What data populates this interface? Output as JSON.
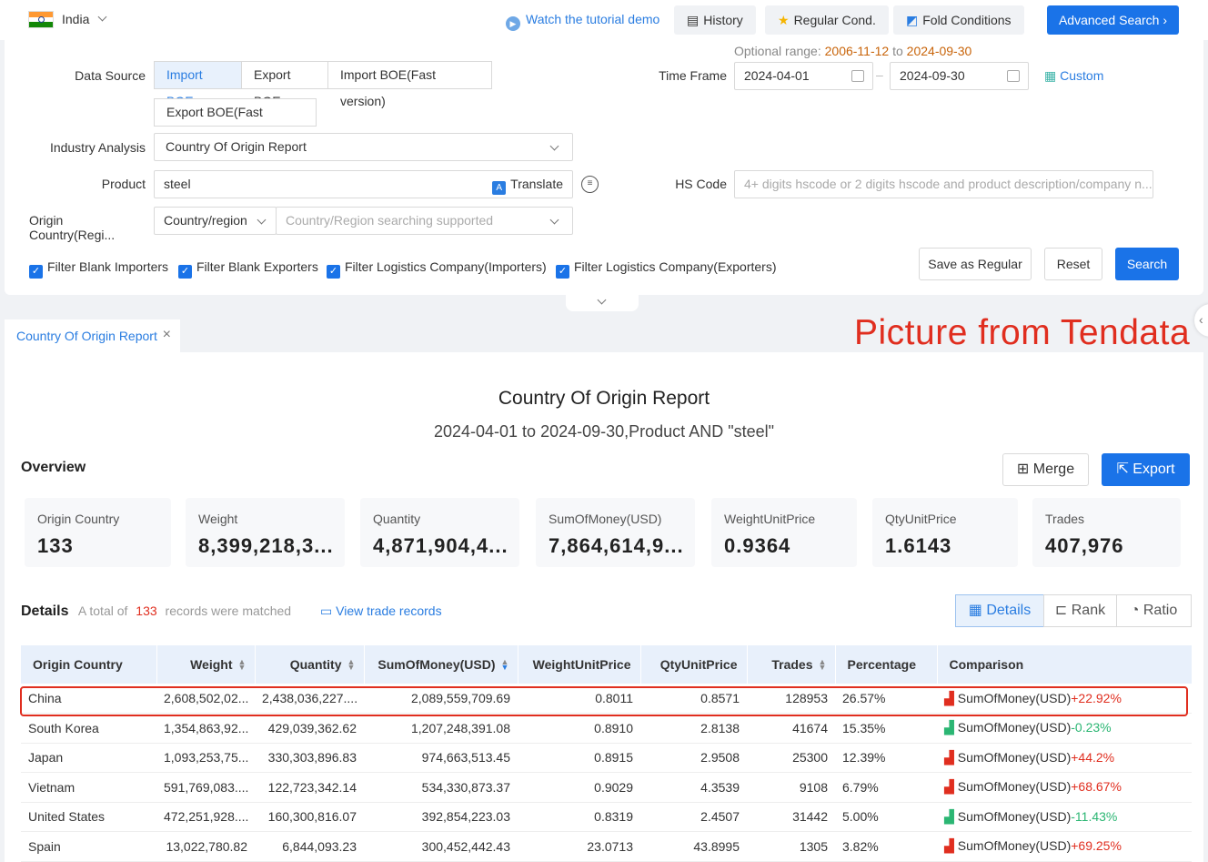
{
  "topbar": {
    "country": "India",
    "tutorial": "Watch the tutorial demo",
    "history": "History",
    "regular_cond": "Regular Cond.",
    "fold_conditions": "Fold Conditions",
    "advanced_search": "Advanced Search"
  },
  "form": {
    "data_source_label": "Data Source",
    "sources": [
      "Import BOE",
      "Export BOE",
      "Import BOE(Fast version)",
      "Export BOE(Fast version)"
    ],
    "optional_range_label": "Optional range",
    "optional_range_from": "2006-11-12",
    "optional_range_to_word": "to",
    "optional_range_to": "2024-09-30",
    "time_frame_label": "Time Frame",
    "date_from": "2024-04-01",
    "date_to": "2024-09-30",
    "custom": "Custom",
    "industry_label": "Industry Analysis",
    "industry_value": "Country Of Origin Report",
    "product_label": "Product",
    "product_value": "steel",
    "translate": "Translate",
    "hs_label": "HS Code",
    "hs_placeholder": "4+ digits hscode or 2 digits hscode and product description/company n...",
    "origin_label": "Origin Country(Regi...",
    "origin_type": "Country/region",
    "origin_placeholder": "Country/Region searching supported",
    "filters": [
      "Filter Blank Importers",
      "Filter Blank Exporters",
      "Filter Logistics Company(Importers)",
      "Filter Logistics Company(Exporters)"
    ],
    "save_regular": "Save as Regular",
    "reset": "Reset",
    "search": "Search"
  },
  "tab": {
    "label": "Country Of Origin Report"
  },
  "watermark": "Picture from Tendata",
  "report": {
    "title": "Country Of Origin Report",
    "subtitle": "2024-04-01 to 2024-09-30,Product AND \"steel\"",
    "overview": "Overview",
    "merge": "Merge",
    "export": "Export",
    "metrics": [
      {
        "label": "Origin Country",
        "value": "133"
      },
      {
        "label": "Weight",
        "value": "8,399,218,3..."
      },
      {
        "label": "Quantity",
        "value": "4,871,904,4..."
      },
      {
        "label": "SumOfMoney(USD)",
        "value": "7,864,614,9..."
      },
      {
        "label": "WeightUnitPrice",
        "value": "0.9364"
      },
      {
        "label": "QtyUnitPrice",
        "value": "1.6143"
      },
      {
        "label": "Trades",
        "value": "407,976"
      }
    ],
    "details": "Details",
    "total_pre": "A total of",
    "total_count": "133",
    "total_post": "records were matched",
    "view_records": "View trade records",
    "view_modes": [
      "Details",
      "Rank",
      "Ratio"
    ],
    "columns": [
      "Origin Country",
      "Weight",
      "Quantity",
      "SumOfMoney(USD)",
      "WeightUnitPrice",
      "QtyUnitPrice",
      "Trades",
      "Percentage",
      "Comparison"
    ],
    "rows": [
      {
        "country": "China",
        "weight": "2,608,502,02...",
        "quantity": "2,438,036,227....",
        "money": "2,089,559,709.69",
        "wup": "0.8011",
        "qup": "0.8571",
        "trades": "128953",
        "pct": "26.57%",
        "cmp_label": "SumOfMoney(USD)",
        "cmp": "+22.92%",
        "trend": "up"
      },
      {
        "country": "South Korea",
        "weight": "1,354,863,92...",
        "quantity": "429,039,362.62",
        "money": "1,207,248,391.08",
        "wup": "0.8910",
        "qup": "2.8138",
        "trades": "41674",
        "pct": "15.35%",
        "cmp_label": "SumOfMoney(USD)",
        "cmp": "-0.23%",
        "trend": "down"
      },
      {
        "country": "Japan",
        "weight": "1,093,253,75...",
        "quantity": "330,303,896.83",
        "money": "974,663,513.45",
        "wup": "0.8915",
        "qup": "2.9508",
        "trades": "25300",
        "pct": "12.39%",
        "cmp_label": "SumOfMoney(USD)",
        "cmp": "+44.2%",
        "trend": "up"
      },
      {
        "country": "Vietnam",
        "weight": "591,769,083....",
        "quantity": "122,723,342.14",
        "money": "534,330,873.37",
        "wup": "0.9029",
        "qup": "4.3539",
        "trades": "9108",
        "pct": "6.79%",
        "cmp_label": "SumOfMoney(USD)",
        "cmp": "+68.67%",
        "trend": "up"
      },
      {
        "country": "United States",
        "weight": "472,251,928....",
        "quantity": "160,300,816.07",
        "money": "392,854,223.03",
        "wup": "0.8319",
        "qup": "2.4507",
        "trades": "31442",
        "pct": "5.00%",
        "cmp_label": "SumOfMoney(USD)",
        "cmp": "-11.43%",
        "trend": "down"
      },
      {
        "country": "Spain",
        "weight": "13,022,780.82",
        "quantity": "6,844,093.23",
        "money": "300,452,442.43",
        "wup": "23.0713",
        "qup": "43.8995",
        "trades": "1305",
        "pct": "3.82%",
        "cmp_label": "SumOfMoney(USD)",
        "cmp": "+69.25%",
        "trend": "up"
      }
    ]
  },
  "colors": {
    "accent": "#1a73e8",
    "up": "#e02e1f",
    "down": "#2bb673",
    "orange": "#c8640a"
  }
}
